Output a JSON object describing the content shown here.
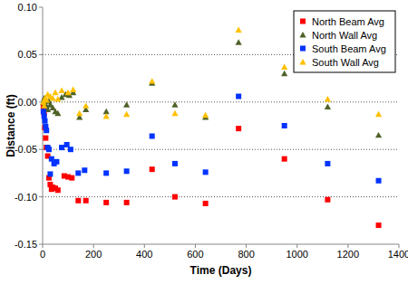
{
  "chart_data": {
    "type": "scatter",
    "x_label": "Time (Days)",
    "y_label": "Distance (ft)",
    "xlim": [
      0,
      1400
    ],
    "xticks": [
      0,
      200,
      400,
      600,
      800,
      1000,
      1200,
      1400
    ],
    "ylim": [
      -0.15,
      0.1
    ],
    "yticks": [
      -0.15,
      {
        "value": -0.1,
        "label": "-0.10"
      },
      -0.05,
      {
        "value": 0,
        "label": "0.00"
      },
      0.05,
      {
        "value": 0.1,
        "label": "0.10"
      }
    ],
    "grid": true,
    "legend": "upper right",
    "series": [
      {
        "name": "North Beam Avg",
        "color": "#ff0000",
        "marker": "square",
        "x": [
          3,
          6,
          9,
          12,
          15,
          20,
          25,
          30,
          35,
          40,
          50,
          60,
          85,
          100,
          115,
          140,
          170,
          250,
          330,
          430,
          520,
          640,
          770,
          950,
          1120,
          1320
        ],
        "values": [
          -0.005,
          -0.012,
          -0.027,
          -0.038,
          -0.048,
          -0.057,
          -0.08,
          -0.087,
          -0.092,
          -0.09,
          -0.091,
          -0.093,
          -0.078,
          -0.079,
          -0.08,
          -0.104,
          -0.104,
          -0.106,
          -0.106,
          -0.071,
          -0.1,
          -0.107,
          -0.028,
          -0.06,
          -0.103,
          -0.13
        ]
      },
      {
        "name": "North Wall Avg",
        "color": "#4f6228",
        "marker": "triangle",
        "x": [
          3,
          6,
          9,
          12,
          15,
          20,
          25,
          30,
          40,
          50,
          60,
          75,
          90,
          105,
          120,
          145,
          170,
          250,
          330,
          430,
          520,
          640,
          770,
          950,
          1120,
          1320
        ],
        "values": [
          0.0,
          0.004,
          -0.002,
          0.002,
          -0.004,
          -0.008,
          0.001,
          -0.003,
          -0.006,
          -0.01,
          -0.012,
          0.005,
          0.008,
          0.007,
          0.01,
          -0.016,
          -0.008,
          -0.01,
          -0.003,
          0.02,
          -0.003,
          -0.016,
          0.063,
          0.03,
          -0.005,
          -0.035
        ]
      },
      {
        "name": "South Beam Avg",
        "color": "#0033ff",
        "marker": "square",
        "x": [
          3,
          6,
          9,
          12,
          15,
          20,
          25,
          30,
          35,
          45,
          55,
          75,
          95,
          110,
          140,
          165,
          250,
          330,
          430,
          520,
          640,
          770,
          950,
          1120,
          1320
        ],
        "values": [
          -0.01,
          -0.015,
          -0.02,
          -0.026,
          -0.03,
          -0.048,
          -0.05,
          -0.076,
          -0.06,
          -0.065,
          -0.063,
          -0.048,
          -0.045,
          -0.05,
          -0.075,
          -0.072,
          -0.075,
          -0.073,
          -0.036,
          -0.065,
          -0.074,
          0.006,
          -0.025,
          -0.065,
          -0.083
        ]
      },
      {
        "name": "South Wall Avg",
        "color": "#ffc000",
        "marker": "triangle",
        "x": [
          3,
          6,
          10,
          15,
          20,
          30,
          40,
          50,
          60,
          75,
          100,
          120,
          145,
          170,
          250,
          330,
          430,
          520,
          640,
          770,
          950,
          1120,
          1320
        ],
        "values": [
          0.0,
          -0.004,
          0.004,
          0.002,
          0.008,
          0.006,
          0.004,
          0.01,
          0.003,
          0.012,
          0.01,
          0.013,
          -0.012,
          -0.004,
          -0.015,
          -0.013,
          0.022,
          -0.012,
          -0.014,
          0.076,
          0.037,
          0.003,
          -0.013
        ]
      }
    ]
  }
}
